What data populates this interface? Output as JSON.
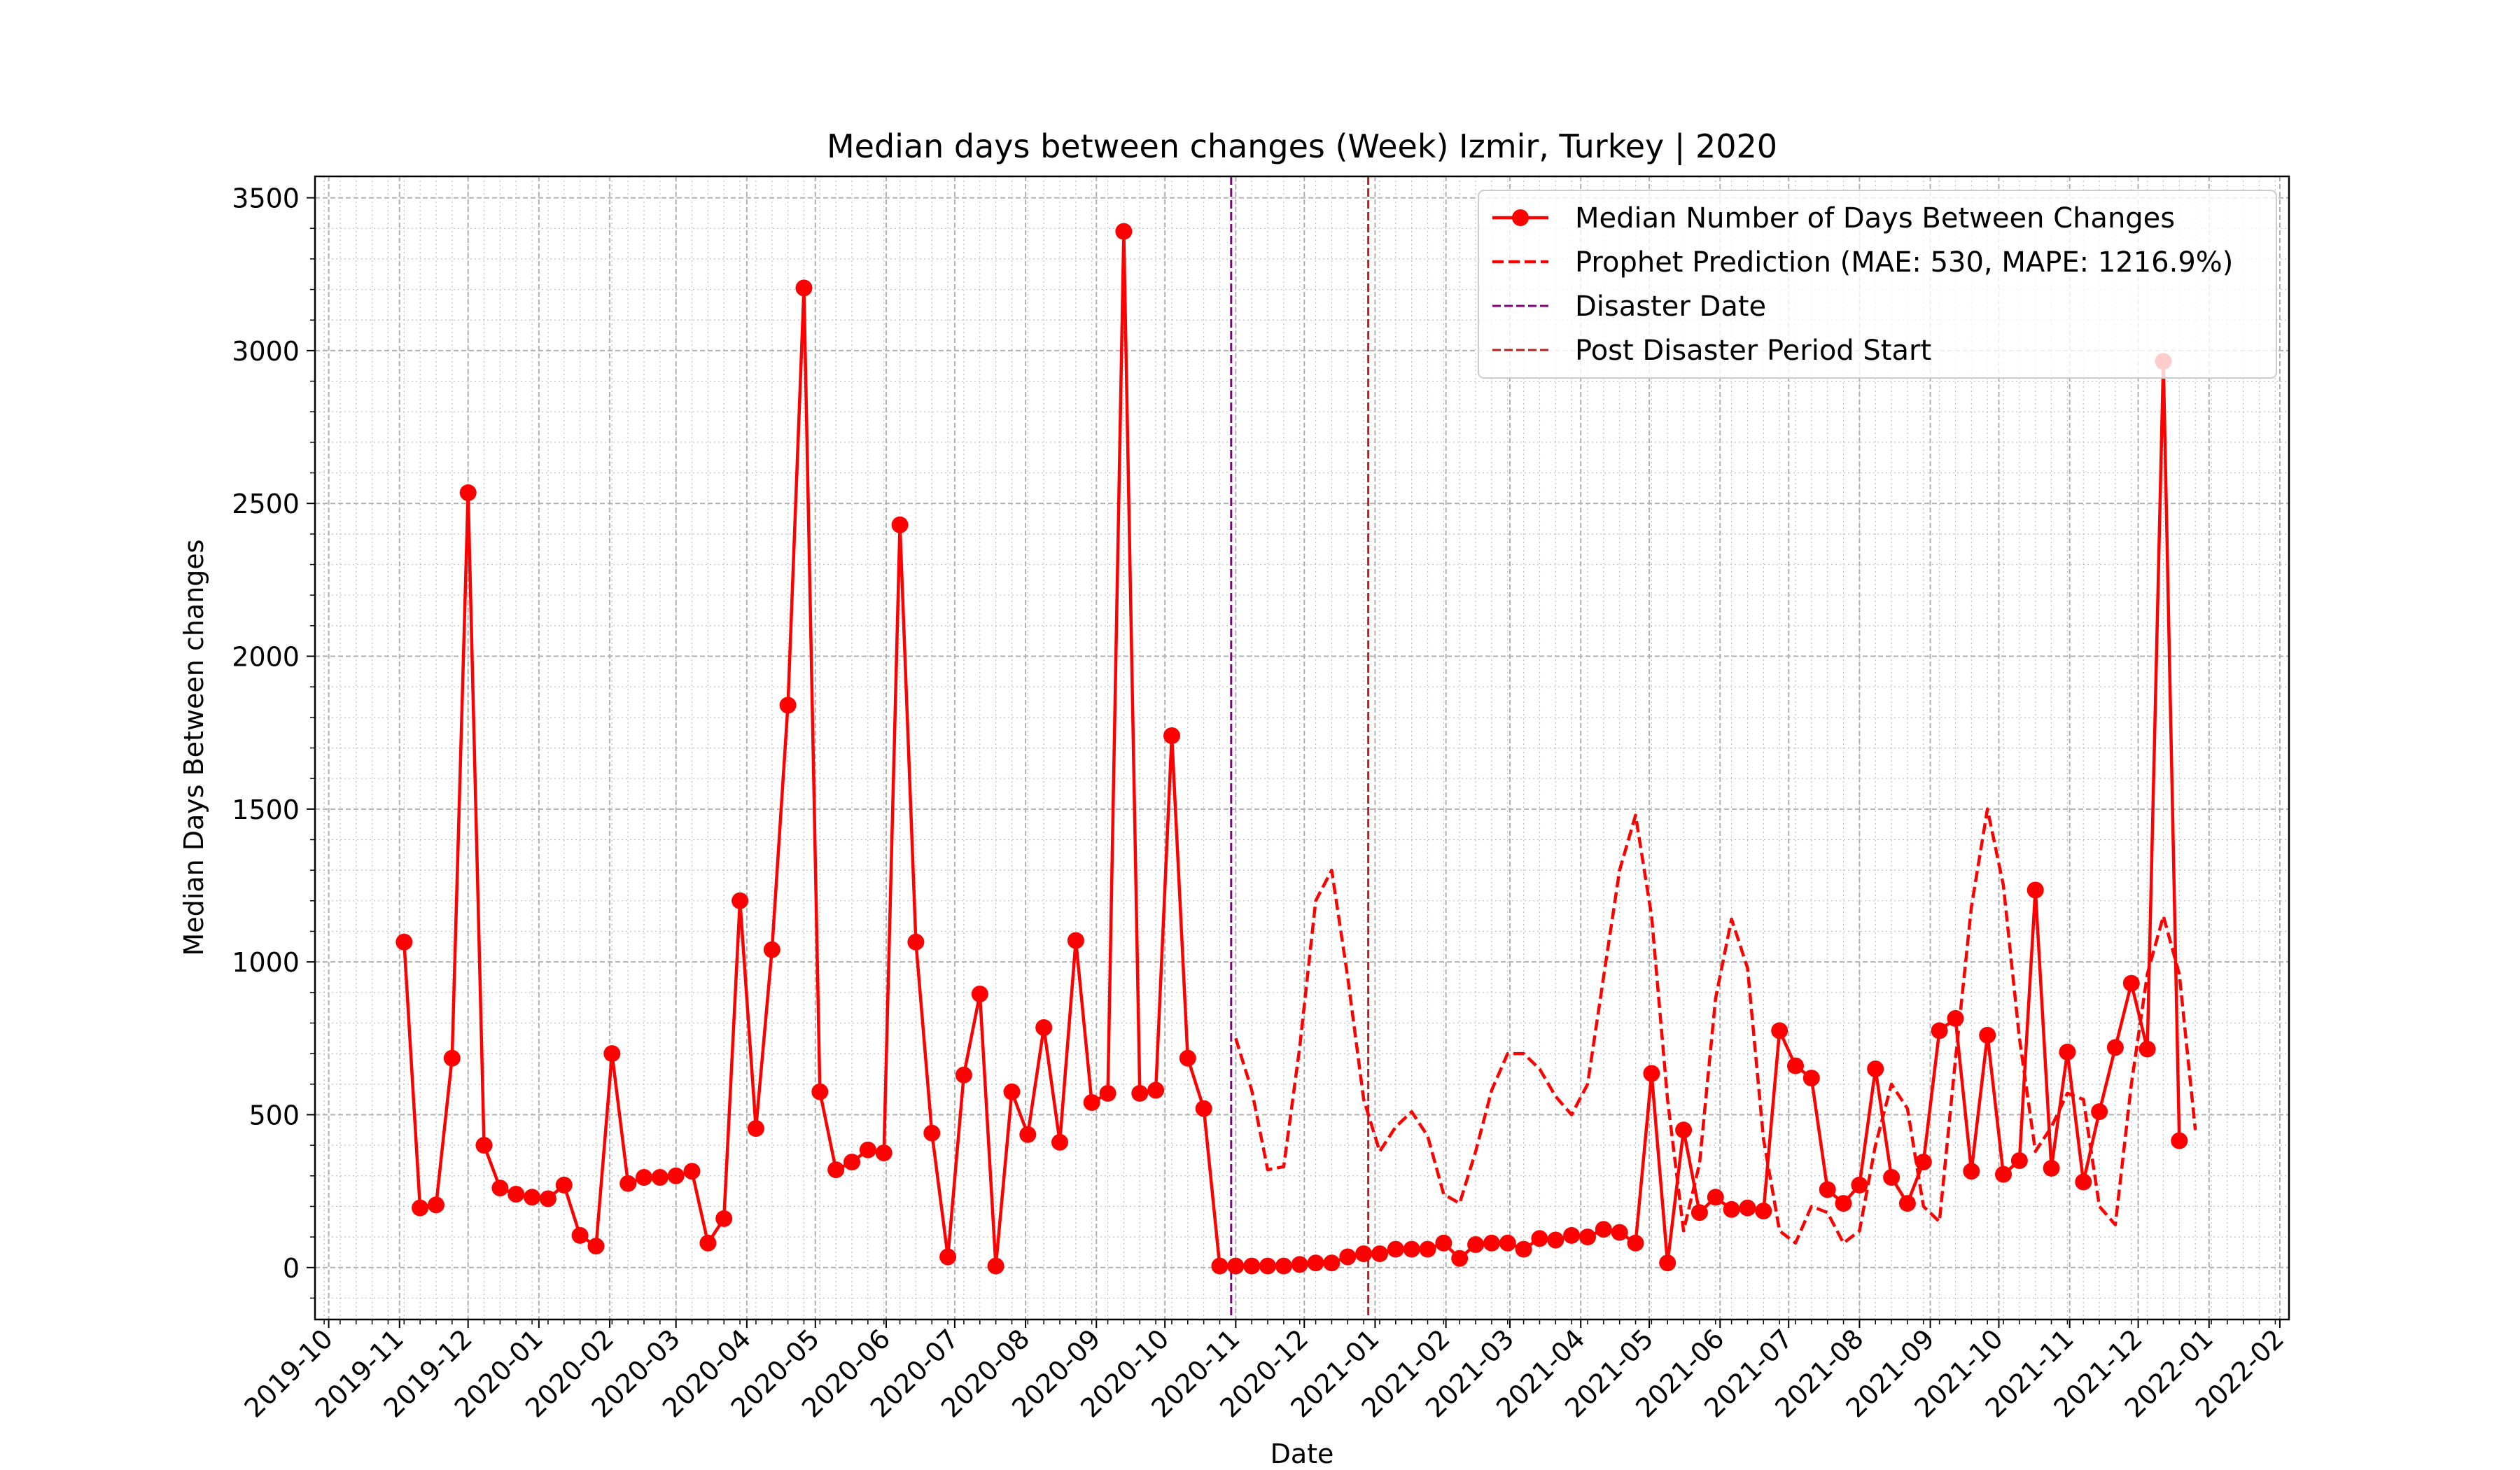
{
  "chart_data": {
    "type": "line",
    "title": "Median days between changes (Week) Izmir, Turkey | 2020",
    "xlabel": "Date",
    "ylabel": "Median Days Between changes",
    "xlim": [
      "2019-09-25",
      "2022-02-05"
    ],
    "ylim": [
      -170,
      3570
    ],
    "y_ticks": [
      0,
      500,
      1000,
      1500,
      2000,
      2500,
      3000,
      3500
    ],
    "x_ticks": [
      "2019-10",
      "2019-11",
      "2019-12",
      "2020-01",
      "2020-02",
      "2020-03",
      "2020-04",
      "2020-05",
      "2020-06",
      "2020-07",
      "2020-08",
      "2020-09",
      "2020-10",
      "2020-11",
      "2020-12",
      "2021-01",
      "2021-02",
      "2021-03",
      "2021-04",
      "2021-05",
      "2021-06",
      "2021-07",
      "2021-08",
      "2021-09",
      "2021-10",
      "2021-11",
      "2021-12",
      "2022-01",
      "2022-02"
    ],
    "grid": true,
    "legend_position": "top-right",
    "colors": {
      "actual": "#ff0000",
      "prediction": "#ff0000",
      "disaster": "#800080",
      "post_disaster": "#b22222",
      "grid": "#b0b0b0"
    },
    "series": [
      {
        "name": "Median Number of Days Between Changes",
        "style": "solid-markers",
        "x": [
          "2019-11-03",
          "2019-11-10",
          "2019-11-17",
          "2019-11-24",
          "2019-12-01",
          "2019-12-08",
          "2019-12-15",
          "2019-12-22",
          "2019-12-29",
          "2020-01-05",
          "2020-01-12",
          "2020-01-19",
          "2020-01-26",
          "2020-02-02",
          "2020-02-09",
          "2020-02-16",
          "2020-02-23",
          "2020-03-01",
          "2020-03-08",
          "2020-03-15",
          "2020-03-22",
          "2020-03-29",
          "2020-04-05",
          "2020-04-12",
          "2020-04-19",
          "2020-04-26",
          "2020-05-03",
          "2020-05-10",
          "2020-05-17",
          "2020-05-24",
          "2020-05-31",
          "2020-06-07",
          "2020-06-14",
          "2020-06-21",
          "2020-06-28",
          "2020-07-05",
          "2020-07-12",
          "2020-07-19",
          "2020-07-26",
          "2020-08-02",
          "2020-08-09",
          "2020-08-16",
          "2020-08-23",
          "2020-08-30",
          "2020-09-06",
          "2020-09-13",
          "2020-09-20",
          "2020-09-27",
          "2020-10-04",
          "2020-10-11",
          "2020-10-18",
          "2020-10-25",
          "2020-11-01",
          "2020-11-08",
          "2020-11-15",
          "2020-11-22",
          "2020-11-29",
          "2020-12-06",
          "2020-12-13",
          "2020-12-20",
          "2020-12-27",
          "2021-01-03",
          "2021-01-10",
          "2021-01-17",
          "2021-01-24",
          "2021-01-31",
          "2021-02-07",
          "2021-02-14",
          "2021-02-21",
          "2021-02-28",
          "2021-03-07",
          "2021-03-14",
          "2021-03-21",
          "2021-03-28",
          "2021-04-04",
          "2021-04-11",
          "2021-04-18",
          "2021-04-25",
          "2021-05-02",
          "2021-05-09",
          "2021-05-16",
          "2021-05-23",
          "2021-05-30",
          "2021-06-06",
          "2021-06-13",
          "2021-06-20",
          "2021-06-27",
          "2021-07-04",
          "2021-07-11",
          "2021-07-18",
          "2021-07-25",
          "2021-08-01",
          "2021-08-08",
          "2021-08-15",
          "2021-08-22",
          "2021-08-29",
          "2021-09-05",
          "2021-09-12",
          "2021-09-19",
          "2021-09-26",
          "2021-10-03",
          "2021-10-10",
          "2021-10-17",
          "2021-10-24",
          "2021-10-31",
          "2021-11-07",
          "2021-11-14",
          "2021-11-21",
          "2021-11-28",
          "2021-12-05",
          "2021-12-12",
          "2021-12-19"
        ],
        "values": [
          1065,
          195,
          205,
          685,
          2535,
          400,
          260,
          240,
          230,
          225,
          270,
          105,
          70,
          700,
          275,
          295,
          295,
          300,
          315,
          80,
          160,
          1200,
          455,
          1040,
          1840,
          3205,
          575,
          320,
          345,
          385,
          375,
          2430,
          1065,
          440,
          35,
          630,
          895,
          5,
          575,
          435,
          785,
          410,
          1070,
          540,
          570,
          3390,
          570,
          580,
          1740,
          685,
          520,
          5,
          5,
          5,
          5,
          5,
          10,
          15,
          15,
          35,
          45,
          45,
          60,
          60,
          60,
          80,
          30,
          75,
          80,
          80,
          60,
          95,
          90,
          105,
          100,
          125,
          115,
          80,
          635,
          15,
          450,
          180,
          230,
          190,
          195,
          185,
          775,
          660,
          620,
          255,
          210,
          270,
          650,
          295,
          210,
          345,
          775,
          815,
          315,
          760,
          305,
          350,
          1235,
          325,
          705,
          280,
          510,
          720,
          930,
          715,
          2965,
          415
        ]
      },
      {
        "name": "Prophet Prediction (MAE: 530, MAPE: 1216.9%)",
        "style": "dashed",
        "x": [
          "2020-11-01",
          "2020-11-08",
          "2020-11-15",
          "2020-11-22",
          "2020-11-29",
          "2020-12-06",
          "2020-12-13",
          "2020-12-20",
          "2020-12-27",
          "2021-01-03",
          "2021-01-10",
          "2021-01-17",
          "2021-01-24",
          "2021-01-31",
          "2021-02-07",
          "2021-02-14",
          "2021-02-21",
          "2021-02-28",
          "2021-03-07",
          "2021-03-14",
          "2021-03-21",
          "2021-03-28",
          "2021-04-04",
          "2021-04-11",
          "2021-04-18",
          "2021-04-25",
          "2021-05-02",
          "2021-05-09",
          "2021-05-16",
          "2021-05-23",
          "2021-05-30",
          "2021-06-06",
          "2021-06-13",
          "2021-06-20",
          "2021-06-27",
          "2021-07-04",
          "2021-07-11",
          "2021-07-18",
          "2021-07-25",
          "2021-08-01",
          "2021-08-08",
          "2021-08-15",
          "2021-08-22",
          "2021-08-29",
          "2021-09-05",
          "2021-09-12",
          "2021-09-19",
          "2021-09-26",
          "2021-10-03",
          "2021-10-10",
          "2021-10-17",
          "2021-10-24",
          "2021-10-31",
          "2021-11-07",
          "2021-11-14",
          "2021-11-21",
          "2021-11-28",
          "2021-12-05",
          "2021-12-12",
          "2021-12-19",
          "2021-12-26"
        ],
        "values": [
          750,
          580,
          320,
          330,
          720,
          1200,
          1300,
          950,
          550,
          380,
          460,
          510,
          430,
          240,
          210,
          380,
          580,
          700,
          700,
          650,
          560,
          500,
          600,
          950,
          1300,
          1480,
          1150,
          550,
          120,
          340,
          880,
          1140,
          980,
          420,
          120,
          80,
          200,
          180,
          80,
          120,
          400,
          600,
          520,
          200,
          150,
          680,
          1180,
          1500,
          1250,
          750,
          380,
          460,
          570,
          550,
          200,
          140,
          600,
          960,
          1150,
          960,
          450
        ]
      }
    ],
    "vlines": [
      {
        "name": "Disaster Date",
        "x": "2020-10-30",
        "style": "dashed"
      },
      {
        "name": "Post Disaster Period Start",
        "x": "2020-12-29",
        "style": "dashed"
      }
    ]
  }
}
